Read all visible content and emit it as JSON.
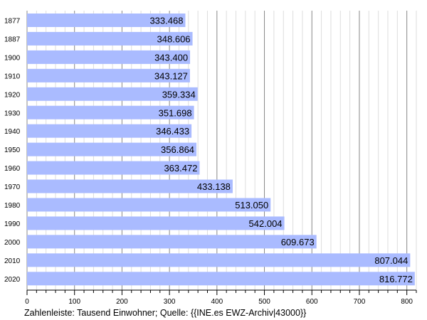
{
  "chart_data": {
    "type": "bar",
    "orientation": "horizontal",
    "categories": [
      "1877",
      "1887",
      "1900",
      "1910",
      "1920",
      "1930",
      "1940",
      "1950",
      "1960",
      "1970",
      "1980",
      "1990",
      "2000",
      "2010",
      "2020"
    ],
    "values": [
      333.468,
      348.606,
      343.4,
      343.127,
      359.334,
      351.698,
      346.433,
      356.864,
      363.472,
      433.138,
      513.05,
      542.004,
      609.673,
      807.044,
      816.772
    ],
    "value_labels": [
      "333.468",
      "348.606",
      "343.400",
      "343.127",
      "359.334",
      "351.698",
      "346.433",
      "356.864",
      "363.472",
      "433.138",
      "513.050",
      "542.004",
      "609.673",
      "807.044",
      "816.772"
    ],
    "xticks": [
      0,
      100,
      200,
      300,
      400,
      500,
      600,
      700,
      800
    ],
    "xlim": [
      0,
      820
    ],
    "minor_tick_step": 20,
    "grid": true,
    "caption": "Zahlenleiste: Tausend Einwohner; Quelle: {{INE.es EWZ-Archiv|43000}}",
    "colors": {
      "bar": "#aabbff",
      "grid_major": "#888888",
      "grid_minor": "#dddddd",
      "axis": "#000000"
    }
  }
}
